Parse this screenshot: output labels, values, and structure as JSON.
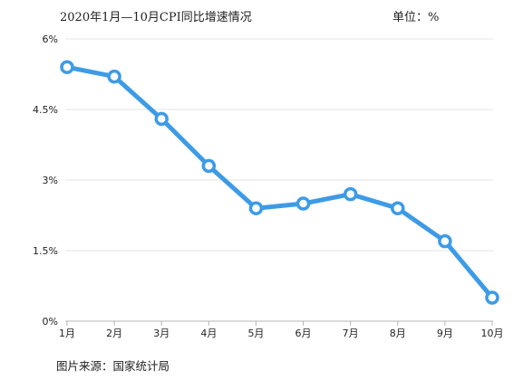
{
  "header": {
    "title": "2020年1月—10月CPI同比增速情况",
    "unit": "单位：%"
  },
  "footer": {
    "source": "图片来源：国家统计局"
  },
  "colors": {
    "line": "#3d9be6",
    "marker_fill": "#ffffff",
    "grid": "#e6e6e6",
    "axis": "#b5b5b5"
  },
  "chart_data": {
    "type": "line",
    "title": "2020年1月—10月CPI同比增速情况",
    "unit": "单位：%",
    "categories": [
      "1月",
      "2月",
      "3月",
      "4月",
      "5月",
      "6月",
      "7月",
      "8月",
      "9月",
      "10月"
    ],
    "series": [
      {
        "values": [
          5.4,
          5.2,
          4.3,
          3.3,
          2.4,
          2.5,
          2.7,
          2.4,
          1.7,
          0.5
        ]
      }
    ],
    "ylim": [
      0,
      6
    ],
    "yticks": [
      0,
      1.5,
      3,
      4.5,
      6
    ],
    "ytick_labels": [
      "0%",
      "1.5%",
      "3%",
      "4.5%",
      "6%"
    ],
    "grid": true,
    "legend": "none"
  }
}
